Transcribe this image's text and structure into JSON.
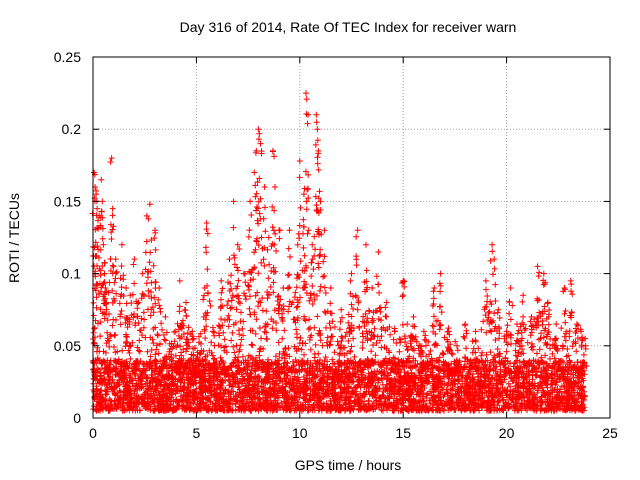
{
  "chart_data": {
    "type": "scatter",
    "title": "Day 316 of 2014, Rate Of TEC Index for receiver warn",
    "xlabel": "GPS time / hours",
    "ylabel": "ROTI / TECUs",
    "xlim": [
      0,
      25
    ],
    "ylim": [
      0,
      0.25
    ],
    "x_ticks": [
      0,
      5,
      10,
      15,
      20,
      25
    ],
    "y_ticks": [
      0,
      0.05,
      0.1,
      0.15,
      0.2,
      0.25
    ],
    "x_tick_labels": [
      "0",
      "5",
      "10",
      "15",
      "20",
      "25"
    ],
    "y_tick_labels": [
      "0",
      "0.05",
      "0.1",
      "0.15",
      "0.2",
      "0.25"
    ],
    "grid": true,
    "marker": "+",
    "marker_color": "#ff0000",
    "series": [
      {
        "name": "ROTI",
        "dense_band": {
          "x_range": [
            0.0,
            23.8
          ],
          "y_range": [
            0.005,
            0.04
          ],
          "note": "continuous dense cloud of points near the baseline"
        },
        "points": [
          [
            0.05,
            0.17
          ],
          [
            0.1,
            0.16
          ],
          [
            0.15,
            0.155
          ],
          [
            0.2,
            0.145
          ],
          [
            0.3,
            0.14
          ],
          [
            0.4,
            0.165
          ],
          [
            0.45,
            0.15
          ],
          [
            0.5,
            0.12
          ],
          [
            0.55,
            0.1
          ],
          [
            0.6,
            0.09
          ],
          [
            0.9,
            0.18
          ],
          [
            0.95,
            0.145
          ],
          [
            1.1,
            0.11
          ],
          [
            1.4,
            0.12
          ],
          [
            1.6,
            0.09
          ],
          [
            1.8,
            0.085
          ],
          [
            2.0,
            0.11
          ],
          [
            2.2,
            0.08
          ],
          [
            2.4,
            0.1
          ],
          [
            2.6,
            0.14
          ],
          [
            2.75,
            0.148
          ],
          [
            3.0,
            0.13
          ],
          [
            3.2,
            0.09
          ],
          [
            3.5,
            0.07
          ],
          [
            4.0,
            0.06
          ],
          [
            4.2,
            0.095
          ],
          [
            4.5,
            0.08
          ],
          [
            4.8,
            0.06
          ],
          [
            5.2,
            0.045
          ],
          [
            5.4,
            0.09
          ],
          [
            5.5,
            0.135
          ],
          [
            5.8,
            0.06
          ],
          [
            6.2,
            0.095
          ],
          [
            6.6,
            0.11
          ],
          [
            6.8,
            0.15
          ],
          [
            7.0,
            0.12
          ],
          [
            7.3,
            0.1
          ],
          [
            7.6,
            0.15
          ],
          [
            7.8,
            0.17
          ],
          [
            7.9,
            0.185
          ],
          [
            8.0,
            0.2
          ],
          [
            8.1,
            0.19
          ],
          [
            8.3,
            0.16
          ],
          [
            8.5,
            0.125
          ],
          [
            8.7,
            0.185
          ],
          [
            8.8,
            0.16
          ],
          [
            9.0,
            0.13
          ],
          [
            9.2,
            0.09
          ],
          [
            9.5,
            0.13
          ],
          [
            9.9,
            0.12
          ],
          [
            10.0,
            0.178
          ],
          [
            10.2,
            0.155
          ],
          [
            10.3,
            0.225
          ],
          [
            10.4,
            0.21
          ],
          [
            10.6,
            0.12
          ],
          [
            10.8,
            0.21
          ],
          [
            10.85,
            0.2
          ],
          [
            10.9,
            0.185
          ],
          [
            11.0,
            0.15
          ],
          [
            11.2,
            0.13
          ],
          [
            11.5,
            0.09
          ],
          [
            12.0,
            0.075
          ],
          [
            12.5,
            0.1
          ],
          [
            12.8,
            0.13
          ],
          [
            13.2,
            0.12
          ],
          [
            13.5,
            0.09
          ],
          [
            13.8,
            0.115
          ],
          [
            14.2,
            0.08
          ],
          [
            14.6,
            0.06
          ],
          [
            15.0,
            0.095
          ],
          [
            15.5,
            0.07
          ],
          [
            16.0,
            0.06
          ],
          [
            16.5,
            0.09
          ],
          [
            16.8,
            0.1
          ],
          [
            17.2,
            0.06
          ],
          [
            17.6,
            0.05
          ],
          [
            18.0,
            0.065
          ],
          [
            18.5,
            0.06
          ],
          [
            19.0,
            0.095
          ],
          [
            19.3,
            0.12
          ],
          [
            19.4,
            0.11
          ],
          [
            19.6,
            0.075
          ],
          [
            20.0,
            0.06
          ],
          [
            20.2,
            0.09
          ],
          [
            20.5,
            0.065
          ],
          [
            20.8,
            0.085
          ],
          [
            21.2,
            0.07
          ],
          [
            21.5,
            0.105
          ],
          [
            21.8,
            0.1
          ],
          [
            22.0,
            0.08
          ],
          [
            22.4,
            0.065
          ],
          [
            22.8,
            0.09
          ],
          [
            23.1,
            0.095
          ],
          [
            23.4,
            0.065
          ],
          [
            23.6,
            0.06
          ],
          [
            23.8,
            0.055
          ]
        ]
      }
    ]
  }
}
